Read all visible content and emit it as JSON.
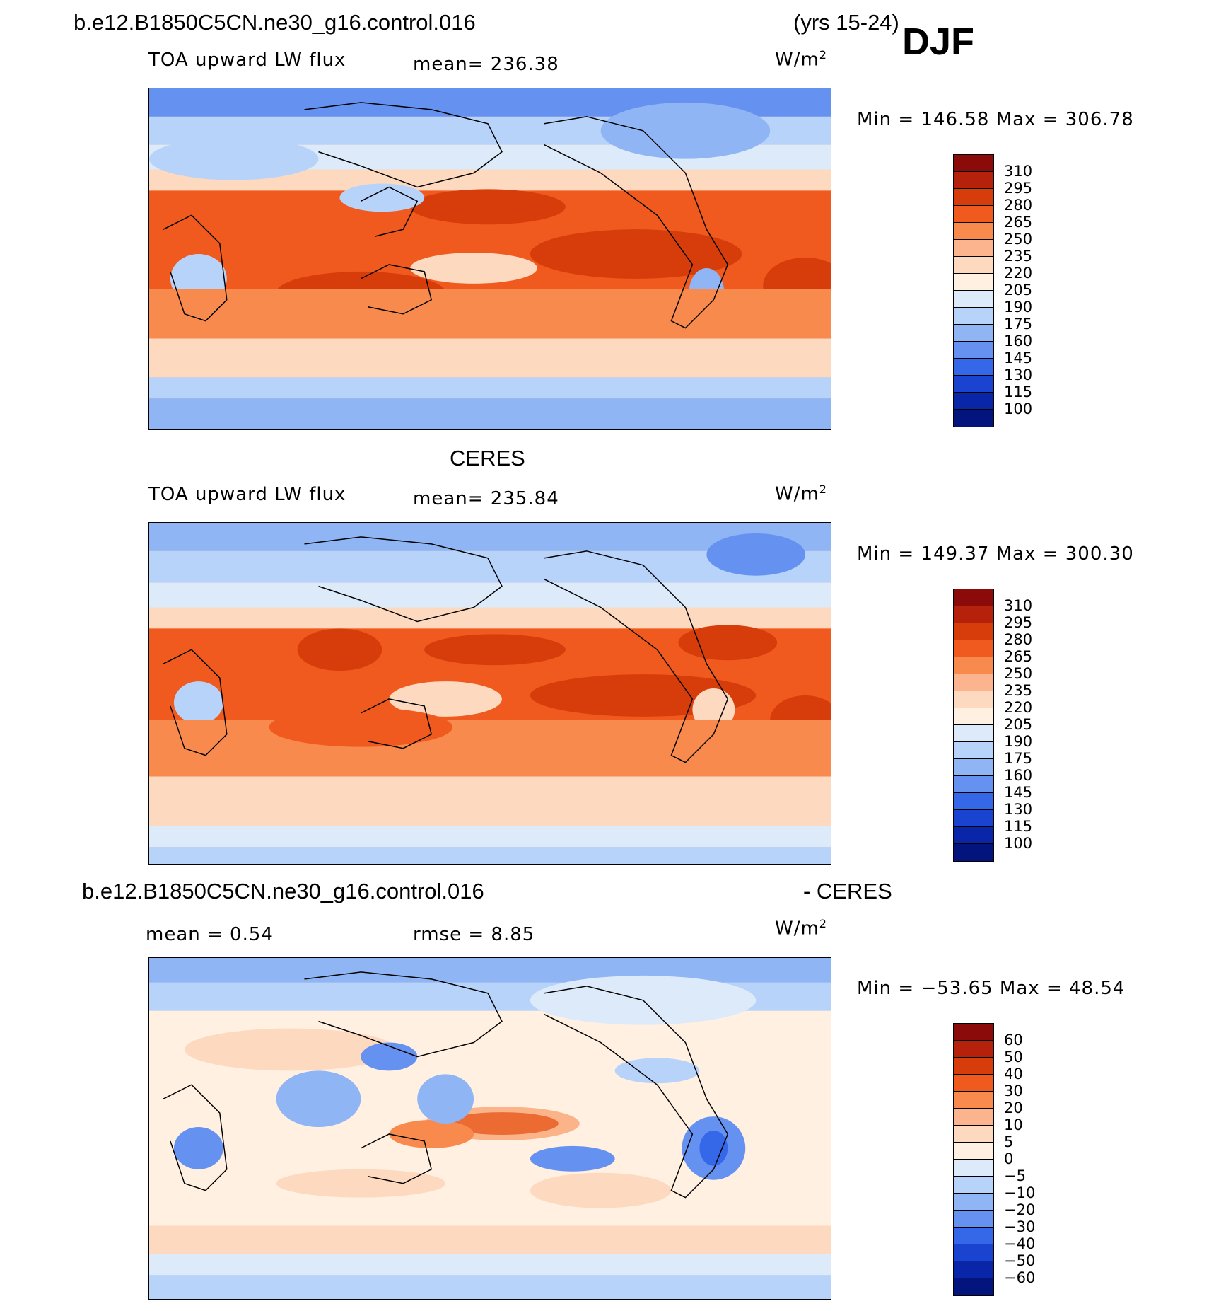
{
  "header": {
    "case_name": "b.e12.B1850C5CN.ne30_g16.control.016",
    "years": "(yrs 15-24)",
    "season": "DJF"
  },
  "panels": [
    {
      "id": "model",
      "title": "",
      "variable": "TOA upward LW flux",
      "stat1": "mean= 236.38",
      "stat2": "",
      "units": "W/m",
      "units_sup": "2",
      "minmax": "Min  =  146.58  Max  =  306.78",
      "colorbar": {
        "levels": [
          "310",
          "295",
          "280",
          "265",
          "250",
          "235",
          "220",
          "205",
          "190",
          "175",
          "160",
          "145",
          "130",
          "115",
          "100"
        ],
        "colors": [
          "#8b0a0a",
          "#b5210a",
          "#d73d0b",
          "#f05a1e",
          "#f88a4e",
          "#fbb48e",
          "#fdd9bf",
          "#fff0e1",
          "#dceafa",
          "#b8d3fa",
          "#8fb5f5",
          "#6592f0",
          "#3568e8",
          "#1a43cf",
          "#0a26a8",
          "#03147d"
        ]
      }
    },
    {
      "id": "obs",
      "title": "CERES",
      "variable": "TOA upward LW flux",
      "stat1": "mean= 235.84",
      "stat2": "",
      "units": "W/m",
      "units_sup": "2",
      "minmax": "Min  =  149.37  Max  =  300.30",
      "colorbar": {
        "levels": [
          "310",
          "295",
          "280",
          "265",
          "250",
          "235",
          "220",
          "205",
          "190",
          "175",
          "160",
          "145",
          "130",
          "115",
          "100"
        ],
        "colors": [
          "#8b0a0a",
          "#b5210a",
          "#d73d0b",
          "#f05a1e",
          "#f88a4e",
          "#fbb48e",
          "#fdd9bf",
          "#fff0e1",
          "#dceafa",
          "#b8d3fa",
          "#8fb5f5",
          "#6592f0",
          "#3568e8",
          "#1a43cf",
          "#0a26a8",
          "#03147d"
        ]
      }
    },
    {
      "id": "diff",
      "title_left": "b.e12.B1850C5CN.ne30_g16.control.016",
      "title_right": "- CERES",
      "variable": "",
      "stat1": "mean =    0.54",
      "stat2": "rmse =    8.85",
      "units": "W/m",
      "units_sup": "2",
      "minmax": "Min  =  −53.65  Max  =   48.54",
      "colorbar": {
        "levels": [
          "60",
          "50",
          "40",
          "30",
          "20",
          "10",
          "5",
          "0",
          "−5",
          "−10",
          "−20",
          "−30",
          "−40",
          "−50",
          "−60"
        ],
        "colors": [
          "#8b0a0a",
          "#b5210a",
          "#d73d0b",
          "#f05a1e",
          "#f88a4e",
          "#fbb48e",
          "#fdd9bf",
          "#fff0e1",
          "#dceafa",
          "#b8d3fa",
          "#8fb5f5",
          "#6592f0",
          "#3568e8",
          "#1a43cf",
          "#0a26a8",
          "#03147d"
        ]
      }
    }
  ]
}
